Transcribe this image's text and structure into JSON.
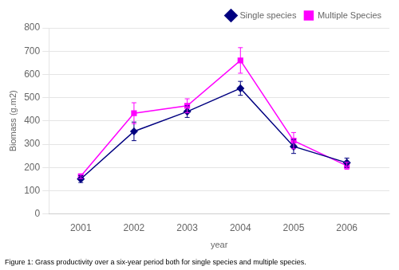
{
  "chart_data": {
    "type": "line",
    "caption": "Figure 1: Grass productivity over a six-year period both for single species and multiple species.",
    "xlabel": "year",
    "ylabel": "Biomass (g.m2)",
    "x": [
      2001,
      2002,
      2003,
      2004,
      2005,
      2006
    ],
    "series": [
      {
        "name": "Single species",
        "color": "#000080",
        "marker": "diamond",
        "values": [
          150,
          355,
          440,
          540,
          290,
          220
        ],
        "yerr": [
          15,
          40,
          25,
          30,
          30,
          20
        ]
      },
      {
        "name": "Multiple Species",
        "color": "#FF00FF",
        "marker": "square",
        "values": [
          162,
          433,
          465,
          660,
          315,
          207
        ],
        "yerr": [
          10,
          45,
          30,
          55,
          35,
          15
        ]
      }
    ],
    "xlim": [
      2000.4,
      2006.8
    ],
    "xticks": [
      2001,
      2002,
      2003,
      2004,
      2005,
      2006
    ],
    "ylim": [
      0,
      800
    ],
    "yticks": [
      0,
      100,
      200,
      300,
      400,
      500,
      600,
      700,
      800
    ],
    "grid": "y",
    "legend": "upper right"
  }
}
